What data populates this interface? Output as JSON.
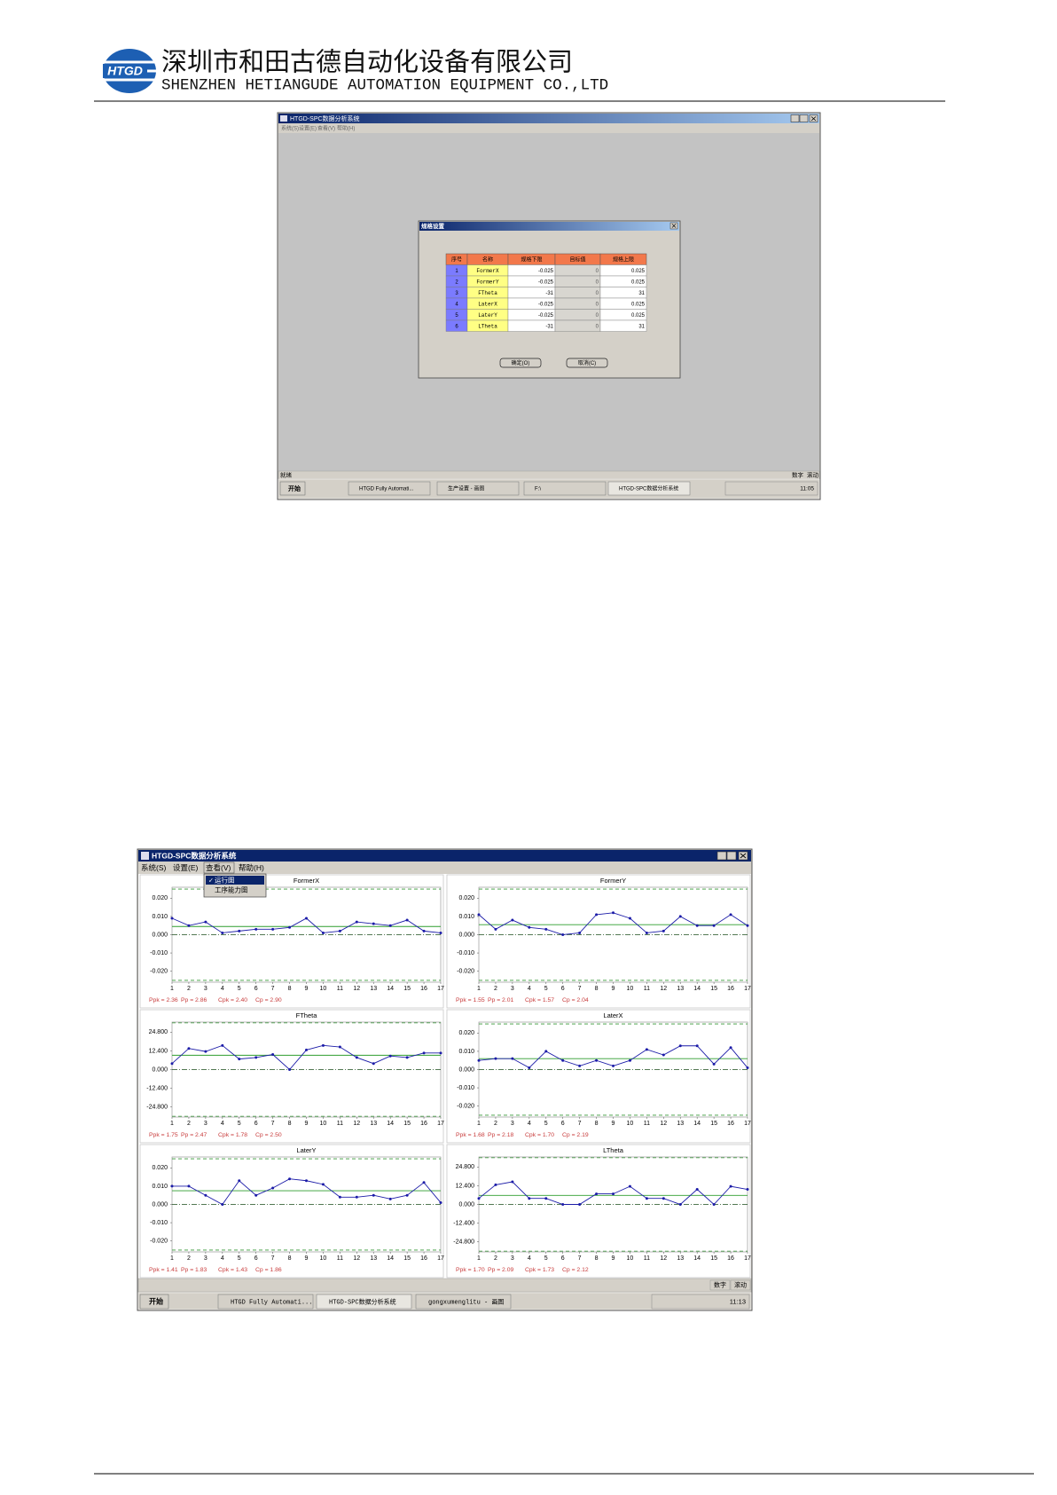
{
  "header": {
    "logo_text": "HTGD",
    "company_cn": "深圳市和田古德自动化设备有限公司",
    "company_en": "SHENZHEN HETIANGUDE AUTOMATION EQUIPMENT CO.,LTD"
  },
  "screenshot_1": {
    "window_title": "HTGD-SPC数据分析系统",
    "menu": [
      "系统(S)",
      "设置(E)",
      "查看(V)",
      "帮助(H)"
    ],
    "dialog": {
      "title": "规格设置",
      "columns": [
        "序号",
        "名称",
        "规格下限",
        "目标值",
        "规格上限"
      ],
      "rows": [
        [
          1,
          "FormerX",
          -0.025,
          0,
          0.025
        ],
        [
          2,
          "FormerY",
          -0.025,
          0,
          0.025
        ],
        [
          3,
          "FTheta",
          -31,
          0,
          31
        ],
        [
          4,
          "LaterX",
          -0.025,
          0,
          0.025
        ],
        [
          5,
          "LaterY",
          -0.025,
          0,
          0.025
        ],
        [
          6,
          "LTheta",
          -31,
          0,
          31
        ]
      ],
      "buttons": [
        "确定(O)",
        "取消(C)"
      ]
    },
    "status": "就绪",
    "status_right": [
      "数字",
      "滚动"
    ],
    "taskbar": {
      "start": "开始",
      "items": [
        "HTGD Fully Automati...",
        "生产设置 - 画图",
        "F:\\",
        "HTGD-SPC数据分析系统"
      ],
      "clock": "11:05"
    }
  },
  "screenshot_2": {
    "window_title": "HTGD-SPC数据分析系统",
    "menu": [
      "系统(S)",
      "设置(E)",
      "查看(V)",
      "帮助(H)"
    ],
    "dropdown": [
      "运行图",
      "工序能力图"
    ],
    "status_right": [
      "数字",
      "滚动"
    ],
    "taskbar": {
      "start": "开始",
      "items": [
        "HTGD Fully Automati...",
        "HTGD-SPC数据分析系统",
        "gongxumenglitu - 画图"
      ],
      "clock": "11:13"
    }
  },
  "chart_data": [
    {
      "type": "line",
      "title": "FormerX",
      "color": "#1c1ca8",
      "x": [
        1,
        2,
        3,
        4,
        5,
        6,
        7,
        8,
        9,
        10,
        11,
        12,
        13,
        14,
        15,
        16,
        17
      ],
      "values": [
        0.009,
        0.005,
        0.007,
        0.001,
        0.002,
        0.003,
        0.003,
        0.004,
        0.009,
        0.001,
        0.002,
        0.007,
        0.006,
        0.005,
        0.008,
        0.002,
        0.001
      ],
      "xlim": [
        1,
        17
      ],
      "xticks": [
        1,
        2,
        3,
        4,
        5,
        6,
        7,
        8,
        9,
        10,
        11,
        12,
        13,
        14,
        15,
        16,
        17
      ],
      "ylim": [
        -0.026,
        0.026
      ],
      "yticks": [
        {
          "value": 0.02,
          "label": "0.020"
        },
        {
          "value": 0.01,
          "label": "0.010"
        },
        {
          "value": 0,
          "label": "0.000"
        },
        {
          "value": -0.01,
          "label": "-0.010"
        },
        {
          "value": -0.02,
          "label": "-0.020"
        }
      ],
      "usl": 0.025,
      "lsl": -0.025,
      "target": 0,
      "mean": 0.0045,
      "stats": [
        "Ppk = 2.36",
        "Pp = 2.86",
        "Cpk = 2.40",
        "Cp = 2.90"
      ]
    },
    {
      "type": "line",
      "title": "FormerY",
      "color": "#1c1ca8",
      "x": [
        1,
        2,
        3,
        4,
        5,
        6,
        7,
        8,
        9,
        10,
        11,
        12,
        13,
        14,
        15,
        16,
        17
      ],
      "values": [
        0.011,
        0.003,
        0.008,
        0.004,
        0.003,
        0.0,
        0.001,
        0.011,
        0.012,
        0.009,
        0.001,
        0.002,
        0.01,
        0.005,
        0.005,
        0.011,
        0.005
      ],
      "xlim": [
        1,
        17
      ],
      "xticks": [
        1,
        2,
        3,
        4,
        5,
        6,
        7,
        8,
        9,
        10,
        11,
        12,
        13,
        14,
        15,
        16,
        17
      ],
      "ylim": [
        -0.026,
        0.026
      ],
      "yticks": [
        {
          "value": 0.02,
          "label": "0.020"
        },
        {
          "value": 0.01,
          "label": "0.010"
        },
        {
          "value": 0,
          "label": "0.000"
        },
        {
          "value": -0.01,
          "label": "-0.010"
        },
        {
          "value": -0.02,
          "label": "-0.020"
        }
      ],
      "usl": 0.025,
      "lsl": -0.025,
      "target": 0,
      "mean": 0.0055,
      "stats": [
        "Ppk = 1.55",
        "Pp = 2.01",
        "Cpk = 1.57",
        "Cp = 2.04"
      ]
    },
    {
      "type": "line",
      "title": "FTheta",
      "color": "#1c1ca8",
      "x": [
        1,
        2,
        3,
        4,
        5,
        6,
        7,
        8,
        9,
        10,
        11,
        12,
        13,
        14,
        15,
        16,
        17
      ],
      "values": [
        4,
        14,
        12,
        16,
        7,
        8,
        10,
        0,
        13,
        16,
        15,
        8,
        4,
        9,
        8,
        11,
        11
      ],
      "xlim": [
        1,
        17
      ],
      "xticks": [
        1,
        2,
        3,
        4,
        5,
        6,
        7,
        8,
        9,
        10,
        11,
        12,
        13,
        14,
        15,
        16,
        17
      ],
      "ylim": [
        -31.5,
        31.5
      ],
      "yticks": [
        {
          "value": 24.8,
          "label": "24.800"
        },
        {
          "value": 12.4,
          "label": "12.400"
        },
        {
          "value": 0,
          "label": "0.000"
        },
        {
          "value": -12.4,
          "label": "-12.400"
        },
        {
          "value": -24.8,
          "label": "-24.800"
        }
      ],
      "usl": 31,
      "lsl": -31,
      "target": 0,
      "mean": 9.5,
      "stats": [
        "Ppk = 1.75",
        "Pp = 2.47",
        "Cpk = 1.78",
        "Cp = 2.50"
      ]
    },
    {
      "type": "line",
      "title": "LaterX",
      "color": "#1c1ca8",
      "x": [
        1,
        2,
        3,
        4,
        5,
        6,
        7,
        8,
        9,
        10,
        11,
        12,
        13,
        14,
        15,
        16,
        17
      ],
      "values": [
        0.005,
        0.006,
        0.006,
        0.001,
        0.01,
        0.005,
        0.002,
        0.005,
        0.002,
        0.005,
        0.011,
        0.008,
        0.013,
        0.013,
        0.003,
        0.012,
        0.001
      ],
      "xlim": [
        1,
        17
      ],
      "xticks": [
        1,
        2,
        3,
        4,
        5,
        6,
        7,
        8,
        9,
        10,
        11,
        12,
        13,
        14,
        15,
        16,
        17
      ],
      "ylim": [
        -0.026,
        0.026
      ],
      "yticks": [
        {
          "value": 0.02,
          "label": "0.020"
        },
        {
          "value": 0.01,
          "label": "0.010"
        },
        {
          "value": 0,
          "label": "0.000"
        },
        {
          "value": -0.01,
          "label": "-0.010"
        },
        {
          "value": -0.02,
          "label": "-0.020"
        }
      ],
      "usl": 0.025,
      "lsl": -0.025,
      "target": 0,
      "mean": 0.006,
      "stats": [
        "Ppk = 1.68",
        "Pp = 2.18",
        "Cpk = 1.70",
        "Cp = 2.19"
      ]
    },
    {
      "type": "line",
      "title": "LaterY",
      "color": "#1c1ca8",
      "x": [
        1,
        2,
        3,
        4,
        5,
        6,
        7,
        8,
        9,
        10,
        11,
        12,
        13,
        14,
        15,
        16,
        17
      ],
      "values": [
        0.01,
        0.01,
        0.005,
        0.0,
        0.013,
        0.005,
        0.009,
        0.014,
        0.013,
        0.011,
        0.004,
        0.004,
        0.005,
        0.003,
        0.005,
        0.012,
        0.001
      ],
      "xlim": [
        1,
        17
      ],
      "xticks": [
        1,
        2,
        3,
        4,
        5,
        6,
        7,
        8,
        9,
        10,
        11,
        12,
        13,
        14,
        15,
        16,
        17
      ],
      "ylim": [
        -0.026,
        0.026
      ],
      "yticks": [
        {
          "value": 0.02,
          "label": "0.020"
        },
        {
          "value": 0.01,
          "label": "0.010"
        },
        {
          "value": 0,
          "label": "0.000"
        },
        {
          "value": -0.01,
          "label": "-0.010"
        },
        {
          "value": -0.02,
          "label": "-0.020"
        }
      ],
      "usl": 0.025,
      "lsl": -0.025,
      "target": 0,
      "mean": 0.0075,
      "stats": [
        "Ppk = 1.41",
        "Pp = 1.83",
        "Cpk = 1.43",
        "Cp = 1.86"
      ]
    },
    {
      "type": "line",
      "title": "LTheta",
      "color": "#1c1ca8",
      "x": [
        1,
        2,
        3,
        4,
        5,
        6,
        7,
        8,
        9,
        10,
        11,
        12,
        13,
        14,
        15,
        16,
        17
      ],
      "values": [
        4,
        13,
        15,
        4,
        4,
        0,
        0,
        7,
        7,
        12,
        4,
        4,
        0,
        10,
        0,
        12,
        10
      ],
      "xlim": [
        1,
        17
      ],
      "xticks": [
        1,
        2,
        3,
        4,
        5,
        6,
        7,
        8,
        9,
        10,
        11,
        12,
        13,
        14,
        15,
        16,
        17
      ],
      "ylim": [
        -31.5,
        31.5
      ],
      "yticks": [
        {
          "value": 24.8,
          "label": "24.800"
        },
        {
          "value": 12.4,
          "label": "12.400"
        },
        {
          "value": 0,
          "label": "0.000"
        },
        {
          "value": -12.4,
          "label": "-12.400"
        },
        {
          "value": -24.8,
          "label": "-24.800"
        }
      ],
      "usl": 31,
      "lsl": -31,
      "target": 0,
      "mean": 6,
      "stats": [
        "Ppk = 1.70",
        "Pp = 2.09",
        "Cpk = 1.73",
        "Cp = 2.12"
      ]
    }
  ]
}
